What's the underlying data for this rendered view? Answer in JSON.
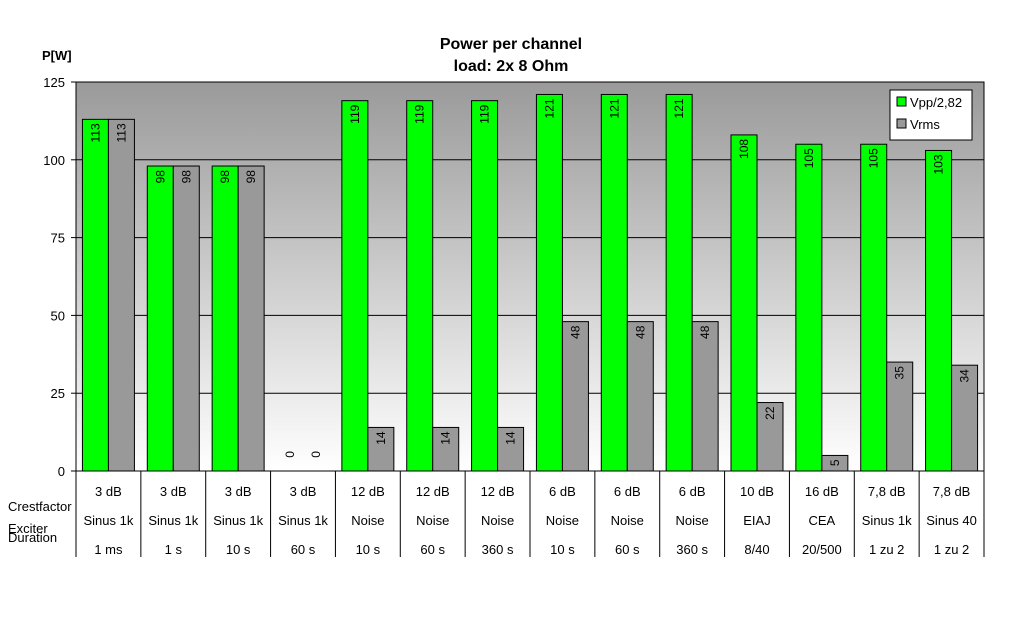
{
  "chart_data": {
    "type": "bar",
    "title": "Power per channel",
    "subtitle": "load:  2x 8 Ohm",
    "ylabel": "P[W]",
    "ylim": [
      0,
      125
    ],
    "yticks": [
      0,
      25,
      50,
      75,
      100,
      125
    ],
    "grid": true,
    "legend_position": "top-right",
    "row_labels": [
      "Crestfactor",
      "Exciter",
      "Duration"
    ],
    "categories": [
      [
        "3 dB",
        "Sinus 1k",
        "1 ms"
      ],
      [
        "3 dB",
        "Sinus 1k",
        "1 s"
      ],
      [
        "3 dB",
        "Sinus 1k",
        "10 s"
      ],
      [
        "3 dB",
        "Sinus 1k",
        "60 s"
      ],
      [
        "12 dB",
        "Noise",
        "10 s"
      ],
      [
        "12 dB",
        "Noise",
        "60 s"
      ],
      [
        "12 dB",
        "Noise",
        "360 s"
      ],
      [
        "6 dB",
        "Noise",
        "10 s"
      ],
      [
        "6 dB",
        "Noise",
        "60 s"
      ],
      [
        "6 dB",
        "Noise",
        "360 s"
      ],
      [
        "10 dB",
        "EIAJ",
        "8/40"
      ],
      [
        "16 dB",
        "CEA",
        "20/500"
      ],
      [
        "7,8 dB",
        "Sinus 1k",
        "1 zu 2"
      ],
      [
        "7,8 dB",
        "Sinus 40",
        "1 zu 2"
      ]
    ],
    "series": [
      {
        "name": "Vpp/2,82",
        "color": "#00ff00",
        "values": [
          113,
          98,
          98,
          0,
          119,
          119,
          119,
          121,
          121,
          121,
          108,
          105,
          105,
          103
        ]
      },
      {
        "name": "Vrms",
        "color": "#999999",
        "values": [
          113,
          98,
          98,
          0,
          14,
          14,
          14,
          48,
          48,
          48,
          22,
          5,
          35,
          34
        ]
      }
    ]
  }
}
